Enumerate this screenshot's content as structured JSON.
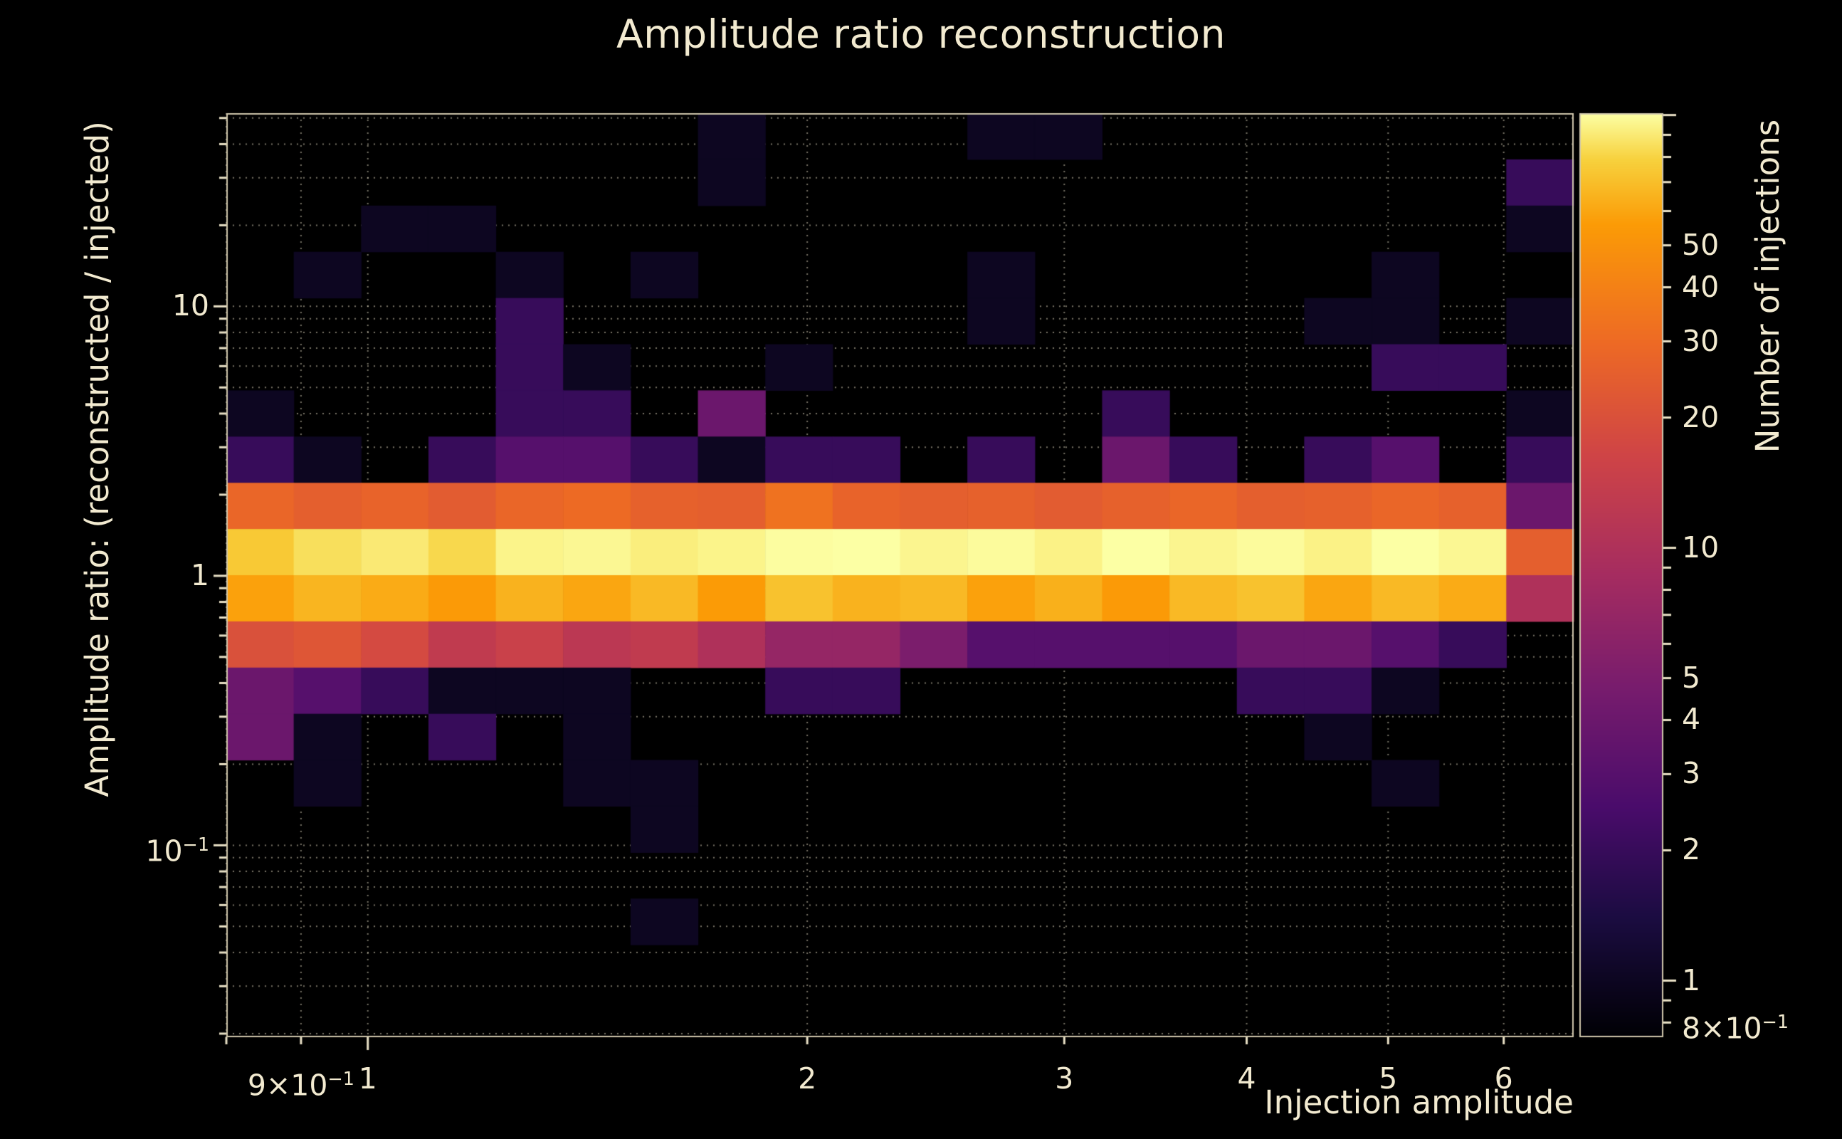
{
  "style": {
    "background": "#000000",
    "text_color": "#f2ead0",
    "grid_color": "rgba(240,232,206,0.5)",
    "frame_color": "#cfc6ab",
    "tick_color": "#e9e1c6",
    "colormap": "inferno"
  },
  "chart_data": {
    "type": "heatmap",
    "title": "Amplitude ratio reconstruction",
    "xlabel": "Injection amplitude",
    "ylabel": "Amplitude ratio: (reconstructed / injected)",
    "colorbar_label": "Number of injections",
    "x_scale": "log",
    "y_scale": "log",
    "color_scale": "log",
    "grid": true,
    "x_range": [
      0.8,
      6.7
    ],
    "y_range": [
      0.0194,
      52.1
    ],
    "color_range": [
      0.74,
      101
    ],
    "x_ticks": [
      {
        "v": 0.9,
        "label": "9×10",
        "sup": "−1"
      },
      {
        "v": 1,
        "label": "1"
      },
      {
        "v": 2,
        "label": "2"
      },
      {
        "v": 3,
        "label": "3"
      },
      {
        "v": 4,
        "label": "4"
      },
      {
        "v": 5,
        "label": "5"
      },
      {
        "v": 6,
        "label": "6"
      }
    ],
    "y_ticks": [
      {
        "v": 10,
        "label": "10"
      },
      {
        "v": 1,
        "label": "1"
      },
      {
        "v": 0.1,
        "label": "10",
        "sup": "−1"
      }
    ],
    "colorbar_ticks": [
      {
        "v": 50,
        "label": "50"
      },
      {
        "v": 40,
        "label": "40"
      },
      {
        "v": 30,
        "label": "30"
      },
      {
        "v": 20,
        "label": "20"
      },
      {
        "v": 10,
        "label": "10"
      },
      {
        "v": 5,
        "label": "5"
      },
      {
        "v": 4,
        "label": "4"
      },
      {
        "v": 3,
        "label": "3"
      },
      {
        "v": 2,
        "label": "2"
      },
      {
        "v": 1,
        "label": "1"
      },
      {
        "v": 0.8,
        "label": "8×10",
        "sup": "−1"
      }
    ],
    "x_bin_edges": [
      0.8,
      0.89,
      0.99,
      1.101,
      1.224,
      1.361,
      1.514,
      1.684,
      1.873,
      2.083,
      2.316,
      2.576,
      2.865,
      3.186,
      3.544,
      3.941,
      4.383,
      4.875,
      5.422,
      6.03,
      6.7
    ],
    "y_bin_edges_top_to_bottom": [
      52.1,
      35.05,
      23.62,
      15.92,
      10.73,
      7.23,
      4.87,
      3.28,
      2.21,
      1.49,
      1.005,
      0.677,
      0.456,
      0.308,
      0.207,
      0.14,
      0.0941,
      0.0634,
      0.0427,
      0.0288,
      0.0194
    ],
    "values": [
      [
        0,
        0,
        0,
        0,
        0,
        0,
        0,
        1,
        0,
        0,
        0,
        1,
        1,
        0,
        0,
        0,
        0,
        0,
        0,
        0
      ],
      [
        0,
        0,
        0,
        0,
        0,
        0,
        0,
        1,
        0,
        0,
        0,
        0,
        0,
        0,
        0,
        0,
        0,
        0,
        0,
        2
      ],
      [
        0,
        0,
        1,
        1,
        0,
        0,
        0,
        0,
        0,
        0,
        0,
        0,
        0,
        0,
        0,
        0,
        0,
        0,
        0,
        1
      ],
      [
        0,
        1,
        0,
        0,
        1,
        0,
        1,
        0,
        0,
        0,
        0,
        1,
        0,
        0,
        0,
        0,
        0,
        1,
        0,
        0
      ],
      [
        0,
        0,
        0,
        0,
        2,
        0,
        0,
        0,
        0,
        0,
        0,
        1,
        0,
        0,
        0,
        0,
        1,
        1,
        0,
        1
      ],
      [
        0,
        0,
        0,
        0,
        2,
        1,
        0,
        0,
        1,
        0,
        0,
        0,
        0,
        0,
        0,
        0,
        0,
        2,
        2,
        0
      ],
      [
        1,
        0,
        0,
        0,
        2,
        2,
        0,
        4,
        0,
        0,
        0,
        0,
        0,
        2,
        0,
        0,
        0,
        0,
        0,
        1
      ],
      [
        2,
        1,
        0,
        2,
        3,
        3,
        2,
        1,
        2,
        2,
        0,
        2,
        0,
        4,
        2,
        0,
        2,
        3,
        0,
        2
      ],
      [
        28,
        25,
        27,
        24,
        28,
        30,
        26,
        25,
        33,
        27,
        25,
        26,
        24,
        26,
        28,
        25,
        26,
        28,
        26,
        4
      ],
      [
        75,
        85,
        90,
        82,
        95,
        97,
        92,
        95,
        100,
        101,
        96,
        99,
        94,
        101,
        96,
        99,
        94,
        101,
        97,
        25
      ],
      [
        58,
        66,
        62,
        55,
        65,
        60,
        68,
        56,
        72,
        65,
        68,
        58,
        64,
        55,
        68,
        72,
        60,
        68,
        62,
        10
      ],
      [
        20,
        22,
        18,
        13,
        15,
        12,
        13,
        10,
        7,
        7,
        5,
        3,
        3,
        3,
        3,
        4,
        4,
        3,
        2,
        0
      ],
      [
        4,
        3,
        2,
        1,
        1,
        1,
        0,
        0,
        2,
        2,
        0,
        0,
        0,
        0,
        0,
        2,
        2,
        1,
        0,
        0
      ],
      [
        4,
        1,
        0,
        2,
        0,
        1,
        0,
        0,
        0,
        0,
        0,
        0,
        0,
        0,
        0,
        0,
        1,
        0,
        0,
        0
      ],
      [
        0,
        1,
        0,
        0,
        0,
        1,
        1,
        0,
        0,
        0,
        0,
        0,
        0,
        0,
        0,
        0,
        0,
        1,
        0,
        0
      ],
      [
        0,
        0,
        0,
        0,
        0,
        0,
        1,
        0,
        0,
        0,
        0,
        0,
        0,
        0,
        0,
        0,
        0,
        0,
        0,
        0
      ],
      [
        0,
        0,
        0,
        0,
        0,
        0,
        0,
        0,
        0,
        0,
        0,
        0,
        0,
        0,
        0,
        0,
        0,
        0,
        0,
        0
      ],
      [
        0,
        0,
        0,
        0,
        0,
        0,
        1,
        0,
        0,
        0,
        0,
        0,
        0,
        0,
        0,
        0,
        0,
        0,
        0,
        0
      ],
      [
        0,
        0,
        0,
        0,
        0,
        0,
        0,
        0,
        0,
        0,
        0,
        0,
        0,
        0,
        0,
        0,
        0,
        0,
        0,
        0
      ],
      [
        0,
        0,
        0,
        0,
        0,
        0,
        0,
        0,
        0,
        0,
        0,
        0,
        0,
        0,
        0,
        0,
        0,
        0,
        0,
        0
      ]
    ]
  }
}
